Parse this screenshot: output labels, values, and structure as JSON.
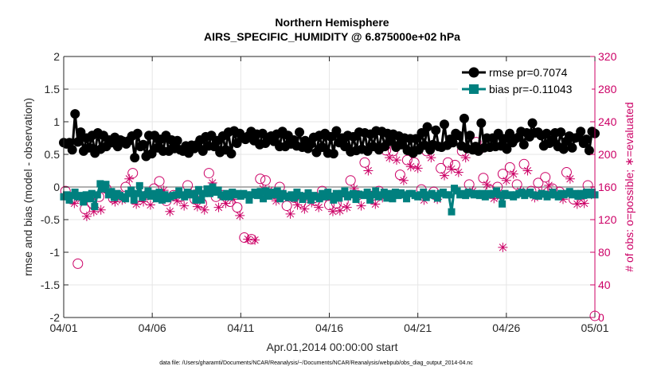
{
  "chart_data": {
    "type": "line",
    "title_line1": "Northern Hemisphere",
    "title_line2": "AIRS_SPECIFIC_HUMIDITY @ 6.875000e+02 hPa",
    "xlabel": "Apr.01,2014 00:00:00 start",
    "ylabel_left": "rmse and bias (model - observation)",
    "ylabel_right": "# of obs: o=possible; ∗=evaluated",
    "footer": "data file: /Users/gharamti/Documents/NCAR/Reanalysis/~/Documents/NCAR/Reanalysis/webpub/obs_diag_output_2014-04.nc",
    "xlim": [
      0,
      30
    ],
    "ylim_left": [
      -2,
      2
    ],
    "ylim_right": [
      0,
      320
    ],
    "x_ticks": [
      0,
      5,
      10,
      15,
      20,
      25,
      30
    ],
    "x_tick_labels": [
      "04/01",
      "04/06",
      "04/11",
      "04/16",
      "04/21",
      "04/26",
      "05/01"
    ],
    "y_left_ticks": [
      -2,
      -1.5,
      -1,
      -0.5,
      0,
      0.5,
      1,
      1.5,
      2
    ],
    "y_left_tick_labels": [
      "-2",
      "-1.5",
      "-1",
      "-0.5",
      "0",
      "0.5",
      "1",
      "1.5",
      "2"
    ],
    "y_right_ticks": [
      0,
      40,
      80,
      120,
      160,
      200,
      240,
      280,
      320
    ],
    "y_right_tick_labels": [
      "0",
      "40",
      "80",
      "120",
      "160",
      "200",
      "240",
      "280",
      "320"
    ],
    "grid": true,
    "legend_position": "top-right",
    "series": [
      {
        "name": "rmse pr=0.7074",
        "color": "#000000",
        "marker": "circle",
        "axis": "left",
        "values": [
          0.68,
          0.66,
          0.68,
          0.57,
          1.12,
          0.69,
          0.84,
          0.55,
          0.75,
          0.6,
          0.79,
          0.52,
          0.83,
          0.58,
          0.79,
          0.62,
          0.72,
          0.68,
          0.76,
          0.62,
          0.72,
          0.7,
          0.66,
          0.71,
          0.78,
          0.45,
          0.82,
          0.62,
          0.65,
          0.47,
          0.79,
          0.51,
          0.79,
          0.6,
          0.73,
          0.55,
          0.79,
          0.55,
          0.72,
          0.59,
          0.71,
          0.57,
          0.55,
          0.63,
          0.52,
          0.64,
          0.59,
          0.65,
          0.72,
          0.55,
          0.77,
          0.63,
          0.79,
          0.62,
          0.71,
          0.53,
          0.78,
          0.57,
          0.84,
          0.51,
          0.86,
          0.67,
          0.82,
          0.75,
          0.73,
          0.78,
          0.85,
          0.71,
          0.81,
          0.65,
          0.82,
          0.67,
          0.73,
          0.78,
          0.7,
          0.81,
          0.62,
          0.85,
          0.62,
          0.79,
          0.66,
          0.72,
          0.63,
          0.84,
          0.61,
          0.71,
          0.59,
          0.66,
          0.76,
          0.53,
          0.79,
          0.61,
          0.82,
          0.52,
          0.77,
          0.51,
          0.86,
          0.68,
          0.75,
          0.62,
          0.79,
          0.54,
          0.77,
          0.56,
          0.84,
          0.58,
          0.83,
          0.55,
          0.81,
          0.62,
          0.86,
          0.57,
          0.85,
          0.62,
          0.82,
          0.7,
          0.81,
          0.61,
          0.78,
          0.65,
          0.75,
          0.56,
          0.74,
          0.52,
          0.74,
          0.57,
          0.83,
          0.64,
          0.92,
          0.57,
          0.65,
          0.87,
          0.62,
          0.61,
          0.96,
          0.64,
          0.73,
          0.68,
          0.82,
          0.79,
          0.63,
          1.05,
          0.59,
          0.79,
          0.57,
          0.62,
          0.55,
          0.98,
          0.6,
          0.75,
          0.61,
          0.75,
          0.62,
          0.82,
          0.63,
          0.74,
          0.58,
          0.82,
          0.68,
          0.74,
          0.76,
          0.85,
          0.65,
          0.83,
          0.77,
          0.98,
          0.83,
          0.84,
          0.79,
          0.63,
          0.82,
          0.67,
          0.72,
          0.83,
          0.62,
          0.84,
          0.58,
          0.7,
          0.78,
          0.6,
          0.75,
          0.76,
          0.85,
          0.67,
          0.73,
          0.56,
          0.85,
          0.82
        ]
      },
      {
        "name": "bias pr=-0.11043",
        "color": "#00807f",
        "marker": "square",
        "axis": "left",
        "values": [
          -0.15,
          -0.12,
          -0.2,
          -0.13,
          -0.08,
          -0.15,
          -0.13,
          -0.23,
          -0.12,
          -0.18,
          -0.1,
          -0.3,
          -0.12,
          0.05,
          -0.03,
          0.04,
          -0.12,
          -0.07,
          -0.16,
          -0.1,
          -0.13,
          -0.15,
          -0.18,
          -0.1,
          -0.05,
          -0.2,
          -0.1,
          0.02,
          -0.16,
          -0.12,
          -0.06,
          -0.14,
          -0.1,
          -0.18,
          -0.08,
          -0.2,
          -0.12,
          -0.18,
          -0.15,
          -0.13,
          -0.12,
          -0.06,
          -0.12,
          -0.15,
          -0.08,
          -0.12,
          -0.1,
          -0.2,
          -0.04,
          -0.2,
          -0.1,
          -0.03,
          -0.1,
          0.0,
          -0.08,
          -0.05,
          -0.12,
          -0.15,
          -0.1,
          -0.15,
          -0.08,
          -0.12,
          -0.1,
          -0.14,
          -0.1,
          -0.12,
          -0.2,
          -0.12,
          -0.08,
          -0.13,
          -0.07,
          -0.18,
          -0.06,
          -0.14,
          -0.08,
          -0.12,
          -0.06,
          -0.18,
          -0.1,
          -0.14,
          -0.16,
          -0.12,
          -0.17,
          -0.08,
          -0.13,
          -0.19,
          -0.14,
          -0.09,
          -0.2,
          -0.13,
          -0.15,
          -0.18,
          -0.1,
          -0.15,
          -0.08,
          -0.14,
          -0.2,
          -0.1,
          -0.17,
          -0.1,
          -0.06,
          -0.15,
          -0.12,
          -0.1,
          -0.19,
          -0.11,
          -0.12,
          -0.13,
          -0.08,
          -0.2,
          -0.12,
          -0.06,
          -0.15,
          -0.12,
          -0.08,
          -0.17,
          -0.1,
          -0.18,
          -0.08,
          -0.13,
          -0.09,
          -0.12,
          -0.18,
          -0.1,
          -0.1,
          -0.13,
          -0.15,
          -0.12,
          -0.08,
          -0.16,
          -0.12,
          -0.1,
          -0.13,
          -0.17,
          -0.1,
          -0.08,
          -0.12,
          -0.12,
          -0.38,
          -0.02,
          -0.06,
          -0.12,
          -0.1,
          -0.13,
          -0.08,
          -0.1,
          -0.12,
          -0.1,
          -0.13,
          -0.1,
          -0.15,
          -0.1,
          -0.12,
          -0.1,
          -0.06,
          -0.12,
          -0.26,
          -0.1,
          -0.13,
          -0.12,
          -0.15,
          -0.12,
          -0.1,
          -0.08,
          -0.13,
          -0.1,
          -0.08,
          -0.12,
          -0.13,
          -0.14,
          -0.1,
          -0.11,
          -0.15,
          -0.12,
          -0.08,
          -0.12,
          -0.15,
          -0.1,
          -0.12,
          -0.1,
          -0.07,
          -0.12,
          -0.1,
          -0.14,
          -0.1,
          -0.13,
          -0.08,
          -0.12,
          -0.08,
          -0.12
        ]
      }
    ],
    "obs_possible": {
      "name": "possible",
      "marker": "o",
      "color": "#cc0066",
      "axis": "right",
      "points": [
        [
          0.1,
          155
        ],
        [
          0.45,
          145
        ],
        [
          0.8,
          66
        ],
        [
          1.2,
          133
        ],
        [
          1.6,
          140
        ],
        [
          2.0,
          148
        ],
        [
          2.4,
          158
        ],
        [
          2.8,
          146
        ],
        [
          3.1,
          150
        ],
        [
          3.5,
          160
        ],
        [
          3.9,
          177
        ],
        [
          4.3,
          148
        ],
        [
          4.7,
          150
        ],
        [
          5.1,
          158
        ],
        [
          5.4,
          167
        ],
        [
          5.8,
          143
        ],
        [
          6.2,
          150
        ],
        [
          6.6,
          148
        ],
        [
          7.0,
          162
        ],
        [
          7.4,
          145
        ],
        [
          7.8,
          140
        ],
        [
          8.2,
          177
        ],
        [
          8.6,
          148
        ],
        [
          9.0,
          150
        ],
        [
          9.4,
          142
        ],
        [
          9.8,
          135
        ],
        [
          10.2,
          98
        ],
        [
          10.6,
          96
        ],
        [
          11.1,
          170
        ],
        [
          11.4,
          168
        ],
        [
          11.8,
          151
        ],
        [
          12.2,
          160
        ],
        [
          12.6,
          137
        ],
        [
          13.0,
          147
        ],
        [
          13.4,
          141
        ],
        [
          13.8,
          149
        ],
        [
          14.2,
          143
        ],
        [
          14.6,
          155
        ],
        [
          15.0,
          138
        ],
        [
          15.4,
          140
        ],
        [
          15.8,
          142
        ],
        [
          16.2,
          168
        ],
        [
          16.6,
          150
        ],
        [
          17.0,
          190
        ],
        [
          17.4,
          149
        ],
        [
          17.8,
          155
        ],
        [
          18.2,
          205
        ],
        [
          18.6,
          204
        ],
        [
          19.0,
          175
        ],
        [
          19.4,
          193
        ],
        [
          19.8,
          190
        ],
        [
          20.2,
          157
        ],
        [
          20.5,
          204
        ],
        [
          20.9,
          154
        ],
        [
          21.3,
          183
        ],
        [
          21.7,
          190
        ],
        [
          22.1,
          187
        ],
        [
          22.5,
          204
        ],
        [
          22.9,
          163
        ],
        [
          23.3,
          215
        ],
        [
          23.7,
          171
        ],
        [
          24.1,
          156
        ],
        [
          24.5,
          160
        ],
        [
          24.8,
          176
        ],
        [
          25.2,
          184
        ],
        [
          25.6,
          163
        ],
        [
          26.0,
          188
        ],
        [
          26.4,
          155
        ],
        [
          26.8,
          165
        ],
        [
          27.2,
          172
        ],
        [
          27.6,
          158
        ],
        [
          28.0,
          154
        ],
        [
          28.4,
          178
        ],
        [
          28.8,
          145
        ],
        [
          29.2,
          150
        ],
        [
          29.6,
          162
        ],
        [
          30.0,
          2
        ]
      ]
    },
    "obs_evaluated": {
      "name": "evaluated",
      "marker": "*",
      "color": "#cc0066",
      "axis": "right",
      "points": [
        [
          0.25,
          148
        ],
        [
          0.6,
          140
        ],
        [
          0.95,
          145
        ],
        [
          1.3,
          124
        ],
        [
          1.7,
          130
        ],
        [
          2.1,
          132
        ],
        [
          2.55,
          153
        ],
        [
          2.9,
          142
        ],
        [
          3.3,
          144
        ],
        [
          3.7,
          170
        ],
        [
          4.1,
          139
        ],
        [
          4.5,
          142
        ],
        [
          4.9,
          138
        ],
        [
          5.25,
          150
        ],
        [
          5.65,
          156
        ],
        [
          6.0,
          130
        ],
        [
          6.4,
          143
        ],
        [
          6.8,
          137
        ],
        [
          7.2,
          153
        ],
        [
          7.55,
          136
        ],
        [
          7.95,
          132
        ],
        [
          8.4,
          165
        ],
        [
          8.75,
          135
        ],
        [
          9.15,
          140
        ],
        [
          9.55,
          145
        ],
        [
          9.95,
          125
        ],
        [
          10.4,
          96
        ],
        [
          10.8,
          95
        ],
        [
          11.25,
          158
        ],
        [
          11.6,
          156
        ],
        [
          12.0,
          143
        ],
        [
          12.4,
          150
        ],
        [
          12.8,
          127
        ],
        [
          13.2,
          138
        ],
        [
          13.6,
          133
        ],
        [
          14.0,
          141
        ],
        [
          14.4,
          135
        ],
        [
          14.8,
          147
        ],
        [
          15.2,
          130
        ],
        [
          15.6,
          131
        ],
        [
          16.0,
          135
        ],
        [
          16.4,
          158
        ],
        [
          16.8,
          137
        ],
        [
          17.2,
          180
        ],
        [
          17.6,
          139
        ],
        [
          18.0,
          147
        ],
        [
          18.4,
          196
        ],
        [
          18.8,
          193
        ],
        [
          19.2,
          168
        ],
        [
          19.6,
          185
        ],
        [
          20.0,
          183
        ],
        [
          20.35,
          144
        ],
        [
          20.75,
          196
        ],
        [
          21.1,
          145
        ],
        [
          21.5,
          174
        ],
        [
          21.9,
          182
        ],
        [
          22.3,
          178
        ],
        [
          22.7,
          196
        ],
        [
          23.1,
          155
        ],
        [
          23.5,
          206
        ],
        [
          23.9,
          163
        ],
        [
          24.3,
          146
        ],
        [
          24.65,
          148
        ],
        [
          25.0,
          168
        ],
        [
          25.4,
          176
        ],
        [
          25.8,
          155
        ],
        [
          26.2,
          180
        ],
        [
          26.6,
          147
        ],
        [
          27.0,
          154
        ],
        [
          27.4,
          162
        ],
        [
          27.8,
          150
        ],
        [
          28.2,
          145
        ],
        [
          28.6,
          170
        ],
        [
          29.0,
          139
        ],
        [
          29.4,
          140
        ],
        [
          29.8,
          151
        ],
        [
          24.8,
          86
        ]
      ]
    },
    "zero_line": 0
  }
}
